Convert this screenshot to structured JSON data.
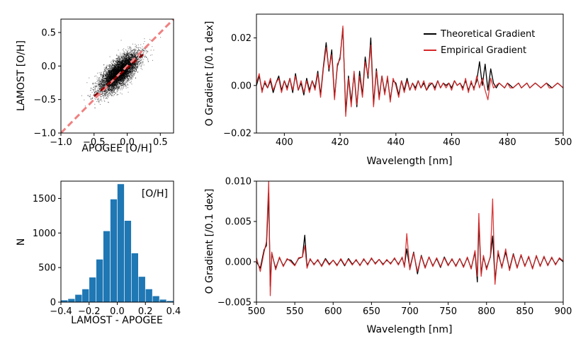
{
  "colors": {
    "scatter": "#000000",
    "one_to_one": "#f08080",
    "mean_line": "#8b0000",
    "histogram": "#1f77b4",
    "theoretical": "#000000",
    "empirical": "#d62728"
  },
  "chart_data": [
    {
      "id": "scatter",
      "type": "scatter",
      "xlabel": "APOGEE [O/H]",
      "ylabel": "LAMOST [O/H]",
      "xlim": [
        -1.0,
        0.7
      ],
      "ylim": [
        -1.0,
        0.7
      ],
      "xticks": [
        -1.0,
        -0.5,
        0.0,
        0.5
      ],
      "yticks": [
        -1.0,
        -0.5,
        0.0,
        0.5
      ],
      "xtick_labels": [
        "−1.0",
        "−0.5",
        "0.0",
        "0.5"
      ],
      "ytick_labels": [
        "−1.0",
        "−0.5",
        "0.0",
        "0.5"
      ],
      "n_points": 7000,
      "distribution": {
        "center_x": -0.12,
        "center_y": -0.1,
        "sigma_major": 0.19,
        "sigma_minor": 0.075,
        "correlation": "positive"
      },
      "reference_lines": [
        {
          "name": "one-to-one",
          "style": "dashed",
          "x": [
            -1.0,
            0.7
          ],
          "y": [
            -1.0,
            0.7
          ]
        },
        {
          "name": "fit",
          "style": "dashed",
          "x": [
            -0.5,
            0.25
          ],
          "y": [
            -0.45,
            0.18
          ]
        }
      ]
    },
    {
      "id": "histogram",
      "type": "bar",
      "xlabel": "LAMOST - APOGEE",
      "ylabel": "N",
      "annotation": "[O/H]",
      "xlim": [
        -0.4,
        0.4
      ],
      "ylim": [
        0,
        1750
      ],
      "xticks": [
        -0.4,
        -0.2,
        0.0,
        0.2,
        0.4
      ],
      "xtick_labels": [
        "−0.4",
        "−0.2",
        "0.0",
        "0.2",
        "0.4"
      ],
      "yticks": [
        0,
        500,
        1000,
        1500
      ],
      "ytick_labels": [
        "0",
        "500",
        "1000",
        "1500"
      ],
      "bin_edges": [
        -0.4,
        -0.35,
        -0.3,
        -0.25,
        -0.2,
        -0.15,
        -0.1,
        -0.05,
        0.0,
        0.05,
        0.1,
        0.15,
        0.2,
        0.25,
        0.3,
        0.35,
        0.4
      ],
      "values": [
        30,
        50,
        110,
        190,
        360,
        620,
        1030,
        1490,
        1710,
        1180,
        710,
        370,
        190,
        90,
        40,
        20
      ]
    },
    {
      "id": "gradient-blue",
      "type": "line",
      "xlabel": "Wavelength [nm]",
      "ylabel": "O Gradient [/0.1 dex]",
      "xlim": [
        390,
        500
      ],
      "ylim": [
        -0.02,
        0.03
      ],
      "xticks": [
        400,
        420,
        440,
        460,
        480,
        500
      ],
      "xtick_labels": [
        "400",
        "420",
        "440",
        "460",
        "480",
        "500"
      ],
      "yticks": [
        -0.02,
        0.0,
        0.02
      ],
      "ytick_labels": [
        "−0.02",
        "0.00",
        "0.02"
      ],
      "legend": {
        "position": "top-right",
        "entries": [
          "Theoretical Gradient",
          "Empirical Gradient"
        ]
      },
      "series": [
        {
          "name": "Theoretical Gradient",
          "x": [
            390,
            391,
            392,
            393,
            394,
            395,
            396,
            397,
            398,
            399,
            400,
            401,
            402,
            403,
            404,
            405,
            406,
            407,
            408,
            409,
            410,
            411,
            412,
            413,
            414,
            415,
            416,
            417,
            418,
            419,
            420,
            421,
            422,
            423,
            424,
            425,
            426,
            427,
            428,
            429,
            430,
            431,
            432,
            433,
            434,
            435,
            436,
            437,
            438,
            439,
            440,
            441,
            442,
            443,
            444,
            445,
            446,
            447,
            448,
            449,
            450,
            451,
            452,
            453,
            454,
            455,
            456,
            457,
            458,
            459,
            460,
            461,
            462,
            463,
            464,
            465,
            466,
            467,
            468,
            469,
            470,
            471,
            472,
            473,
            474,
            475,
            476,
            477,
            478,
            479,
            480,
            481,
            482,
            483,
            484,
            485,
            486,
            487,
            488,
            489,
            490,
            491,
            492,
            493,
            494,
            495,
            496,
            497,
            498,
            499,
            500
          ],
          "y": [
            0.0,
            0.004,
            -0.002,
            0.001,
            -0.001,
            0.002,
            -0.003,
            0.001,
            0.004,
            -0.002,
            0.002,
            -0.001,
            0.003,
            -0.003,
            0.005,
            -0.002,
            0.001,
            -0.004,
            0.003,
            -0.002,
            0.002,
            -0.001,
            0.006,
            -0.004,
            0.008,
            0.018,
            0.006,
            0.015,
            -0.005,
            0.008,
            0.012,
            0.024,
            -0.011,
            0.004,
            -0.007,
            0.005,
            -0.009,
            0.006,
            -0.004,
            0.012,
            0.003,
            0.02,
            -0.008,
            0.007,
            -0.005,
            0.004,
            -0.003,
            0.003,
            -0.006,
            0.002,
            0.001,
            -0.004,
            0.002,
            -0.002,
            0.003,
            -0.002,
            0.001,
            -0.001,
            0.002,
            -0.001,
            0.001,
            -0.002,
            0.0,
            0.001,
            -0.001,
            0.002,
            -0.001,
            0.001,
            0.0,
            0.001,
            -0.001,
            0.002,
            0.0,
            0.001,
            -0.001,
            0.002,
            -0.002,
            0.001,
            -0.001,
            0.002,
            0.01,
            0.0,
            0.009,
            -0.002,
            0.007,
            0.001,
            -0.001,
            0.001,
            0.0,
            -0.001,
            0.001,
            0.0,
            -0.001,
            0.0,
            0.001,
            -0.001,
            0.0,
            0.001,
            -0.001,
            0.0,
            0.001,
            0.0,
            -0.001,
            0.0,
            0.001,
            0.0,
            -0.001,
            0.0,
            0.001,
            0.0,
            -0.001
          ]
        },
        {
          "name": "Empirical Gradient",
          "x": [
            390,
            391,
            392,
            393,
            394,
            395,
            396,
            397,
            398,
            399,
            400,
            401,
            402,
            403,
            404,
            405,
            406,
            407,
            408,
            409,
            410,
            411,
            412,
            413,
            414,
            415,
            416,
            417,
            418,
            419,
            420,
            421,
            422,
            423,
            424,
            425,
            426,
            427,
            428,
            429,
            430,
            431,
            432,
            433,
            434,
            435,
            436,
            437,
            438,
            439,
            440,
            441,
            442,
            443,
            444,
            445,
            446,
            447,
            448,
            449,
            450,
            451,
            452,
            453,
            454,
            455,
            456,
            457,
            458,
            459,
            460,
            461,
            462,
            463,
            464,
            465,
            466,
            467,
            468,
            469,
            470,
            471,
            472,
            473,
            474,
            475,
            476,
            477,
            478,
            479,
            480,
            481,
            482,
            483,
            484,
            485,
            486,
            487,
            488,
            489,
            490,
            491,
            492,
            493,
            494,
            495,
            496,
            497,
            498,
            499,
            500
          ],
          "y": [
            0.001,
            0.005,
            -0.003,
            0.002,
            -0.001,
            0.003,
            -0.002,
            0.001,
            0.003,
            -0.003,
            0.002,
            -0.002,
            0.003,
            -0.002,
            0.004,
            -0.002,
            0.002,
            -0.003,
            0.002,
            -0.003,
            0.002,
            -0.002,
            0.005,
            -0.005,
            0.007,
            0.016,
            0.007,
            0.013,
            -0.006,
            0.009,
            0.011,
            0.025,
            -0.013,
            0.003,
            -0.009,
            0.006,
            -0.008,
            0.004,
            -0.005,
            0.01,
            0.004,
            0.017,
            -0.009,
            0.006,
            -0.006,
            0.004,
            -0.004,
            0.004,
            -0.007,
            0.003,
            0.0,
            -0.005,
            0.002,
            -0.003,
            0.002,
            -0.002,
            0.001,
            -0.002,
            0.002,
            -0.001,
            0.002,
            -0.002,
            0.001,
            0.001,
            -0.002,
            0.002,
            -0.001,
            0.001,
            -0.001,
            0.001,
            -0.002,
            0.002,
            0.0,
            0.001,
            -0.002,
            0.003,
            -0.003,
            0.002,
            -0.002,
            0.004,
            -0.001,
            0.003,
            -0.002,
            -0.006,
            0.003,
            -0.001,
            0.0,
            0.001,
            0.0,
            -0.001,
            0.001,
            -0.001,
            -0.001,
            0.0,
            0.001,
            -0.001,
            0.0,
            0.001,
            -0.001,
            0.0,
            0.001,
            0.0,
            -0.001,
            0.0,
            0.001,
            -0.001,
            -0.001,
            0.0,
            0.001,
            0.0,
            -0.001
          ]
        }
      ]
    },
    {
      "id": "gradient-red",
      "type": "line",
      "xlabel": "Wavelength [nm]",
      "ylabel": "O Gradient [/0.1 dex]",
      "xlim": [
        500,
        900
      ],
      "ylim": [
        -0.005,
        0.01
      ],
      "xticks": [
        500,
        550,
        600,
        650,
        700,
        750,
        800,
        850,
        900
      ],
      "xtick_labels": [
        "500",
        "550",
        "600",
        "650",
        "700",
        "750",
        "800",
        "850",
        "900"
      ],
      "yticks": [
        -0.005,
        0.0,
        0.005,
        0.01
      ],
      "ytick_labels": [
        "−0.005",
        "0.000",
        "0.005",
        "0.010"
      ],
      "series": [
        {
          "name": "Theoretical Gradient",
          "x": [
            500,
            505,
            510,
            513,
            516,
            518,
            520,
            525,
            530,
            535,
            540,
            545,
            550,
            555,
            560,
            563,
            566,
            570,
            575,
            580,
            585,
            590,
            595,
            600,
            605,
            610,
            615,
            620,
            625,
            630,
            635,
            640,
            645,
            650,
            655,
            660,
            665,
            670,
            675,
            680,
            685,
            690,
            693,
            696,
            700,
            705,
            710,
            715,
            720,
            725,
            730,
            735,
            740,
            745,
            750,
            755,
            760,
            765,
            770,
            775,
            780,
            785,
            788,
            790,
            793,
            796,
            800,
            805,
            808,
            811,
            815,
            820,
            825,
            830,
            835,
            840,
            845,
            850,
            855,
            860,
            865,
            870,
            875,
            880,
            885,
            890,
            895,
            900
          ],
          "y": [
            0.0,
            -0.0008,
            0.0015,
            0.002,
            0.0085,
            -0.003,
            0.001,
            -0.0008,
            0.0005,
            -0.0005,
            0.0003,
            0.0002,
            -0.0004,
            0.0004,
            0.0006,
            0.0033,
            -0.0006,
            0.0003,
            -0.0003,
            0.0002,
            -0.0005,
            0.0004,
            -0.0003,
            0.0002,
            -0.0004,
            0.0003,
            -0.0005,
            0.0004,
            -0.0003,
            0.0002,
            -0.0004,
            0.0003,
            -0.0003,
            0.0004,
            -0.0002,
            0.0003,
            -0.0003,
            0.0002,
            -0.0002,
            0.0004,
            -0.0003,
            0.0005,
            -0.0005,
            0.0016,
            -0.0008,
            0.0012,
            -0.0015,
            0.0008,
            -0.0007,
            0.0006,
            -0.0005,
            0.0004,
            -0.0007,
            0.0006,
            -0.0004,
            0.0003,
            -0.0005,
            0.0004,
            -0.0006,
            0.0005,
            -0.0008,
            0.0012,
            -0.0025,
            0.0048,
            -0.0015,
            0.0006,
            -0.0008,
            0.0006,
            0.0032,
            -0.0022,
            0.001,
            -0.0006,
            0.0012,
            -0.0009,
            0.001,
            -0.0007,
            0.0008,
            -0.0005,
            0.0006,
            -0.0008,
            0.0007,
            -0.0005,
            0.0006,
            -0.0004,
            0.0005,
            -0.0003,
            0.0004,
            0.0
          ]
        },
        {
          "name": "Empirical Gradient",
          "x": [
            500,
            505,
            510,
            513,
            516,
            518,
            520,
            525,
            530,
            535,
            540,
            545,
            550,
            555,
            560,
            563,
            566,
            570,
            575,
            580,
            585,
            590,
            595,
            600,
            605,
            610,
            615,
            620,
            625,
            630,
            635,
            640,
            645,
            650,
            655,
            660,
            665,
            670,
            675,
            680,
            685,
            690,
            693,
            696,
            700,
            705,
            710,
            715,
            720,
            725,
            730,
            735,
            740,
            745,
            750,
            755,
            760,
            765,
            770,
            775,
            780,
            785,
            788,
            790,
            793,
            796,
            800,
            805,
            808,
            811,
            815,
            820,
            825,
            830,
            835,
            840,
            845,
            850,
            855,
            860,
            865,
            870,
            875,
            880,
            885,
            890,
            895,
            900
          ],
          "y": [
            0.0005,
            -0.0012,
            0.0012,
            0.0025,
            0.01,
            -0.0042,
            0.0012,
            -0.001,
            0.0006,
            -0.0006,
            0.0004,
            0.0,
            -0.0005,
            0.0005,
            0.0006,
            0.002,
            -0.0008,
            0.0004,
            -0.0004,
            0.0003,
            -0.0006,
            0.0003,
            -0.0004,
            0.0002,
            -0.0005,
            0.0004,
            -0.0004,
            0.0003,
            -0.0004,
            0.0003,
            -0.0005,
            0.0004,
            -0.0004,
            0.0005,
            -0.0003,
            0.0003,
            -0.0004,
            0.0003,
            -0.0003,
            0.0005,
            -0.0004,
            0.0006,
            -0.0007,
            0.0035,
            -0.001,
            0.0011,
            -0.0012,
            0.0007,
            -0.0008,
            0.0006,
            -0.0006,
            0.0005,
            -0.0006,
            0.0005,
            -0.0005,
            0.0004,
            -0.0006,
            0.0004,
            -0.0007,
            0.0006,
            -0.0009,
            0.0014,
            -0.0018,
            0.006,
            -0.0018,
            0.0008,
            -0.001,
            0.0007,
            0.0078,
            -0.0028,
            0.0014,
            -0.0008,
            0.0016,
            -0.0011,
            0.0009,
            -0.0008,
            0.0009,
            -0.0006,
            0.0007,
            -0.0009,
            0.0008,
            -0.0006,
            0.0007,
            -0.0005,
            0.0006,
            -0.0004,
            0.0005,
            0.0001
          ]
        }
      ]
    }
  ]
}
